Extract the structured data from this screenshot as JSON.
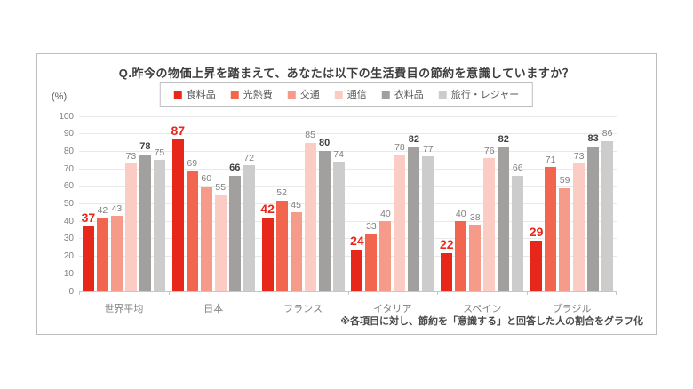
{
  "title": "Q.昨今の物価上昇を踏まえて、あなたは以下の生活費目の節約を意識していますか？",
  "unit_label": "(%)",
  "footnote": "※各項目に対し、節約を「意識する」と回答した人の割合をグラフ化",
  "chart_data": {
    "type": "bar",
    "title": "Q.昨今の物価上昇を踏まえて、あなたは以下の生活費目の節約を意識していますか？",
    "categories": [
      "世界平均",
      "日本",
      "フランス",
      "イタリア",
      "スペイン",
      "ブラジル"
    ],
    "series": [
      {
        "name": "食料品",
        "color": "#e8271b",
        "label_style": "red-bold",
        "values": [
          37,
          87,
          42,
          24,
          22,
          29
        ]
      },
      {
        "name": "光熱費",
        "color": "#f2654e",
        "label_style": "gray",
        "values": [
          42,
          69,
          52,
          33,
          40,
          71
        ]
      },
      {
        "name": "交通",
        "color": "#f69a8a",
        "label_style": "gray",
        "values": [
          43,
          60,
          45,
          40,
          38,
          59
        ]
      },
      {
        "name": "通信",
        "color": "#fbccc3",
        "label_style": "gray",
        "values": [
          73,
          55,
          85,
          78,
          76,
          73
        ]
      },
      {
        "name": "衣料品",
        "color": "#a2a09e",
        "label_style": "dark-bold",
        "values": [
          78,
          66,
          80,
          82,
          82,
          83
        ]
      },
      {
        "name": "旅行・レジャー",
        "color": "#cccccc",
        "label_style": "gray",
        "values": [
          75,
          72,
          74,
          77,
          66,
          86
        ]
      }
    ],
    "xlabel": "",
    "ylabel": "(%)",
    "ylim": [
      0,
      100
    ],
    "yticks": [
      0,
      10,
      20,
      30,
      40,
      50,
      60,
      70,
      80,
      90,
      100
    ],
    "grid": true,
    "legend_position": "top-center"
  }
}
